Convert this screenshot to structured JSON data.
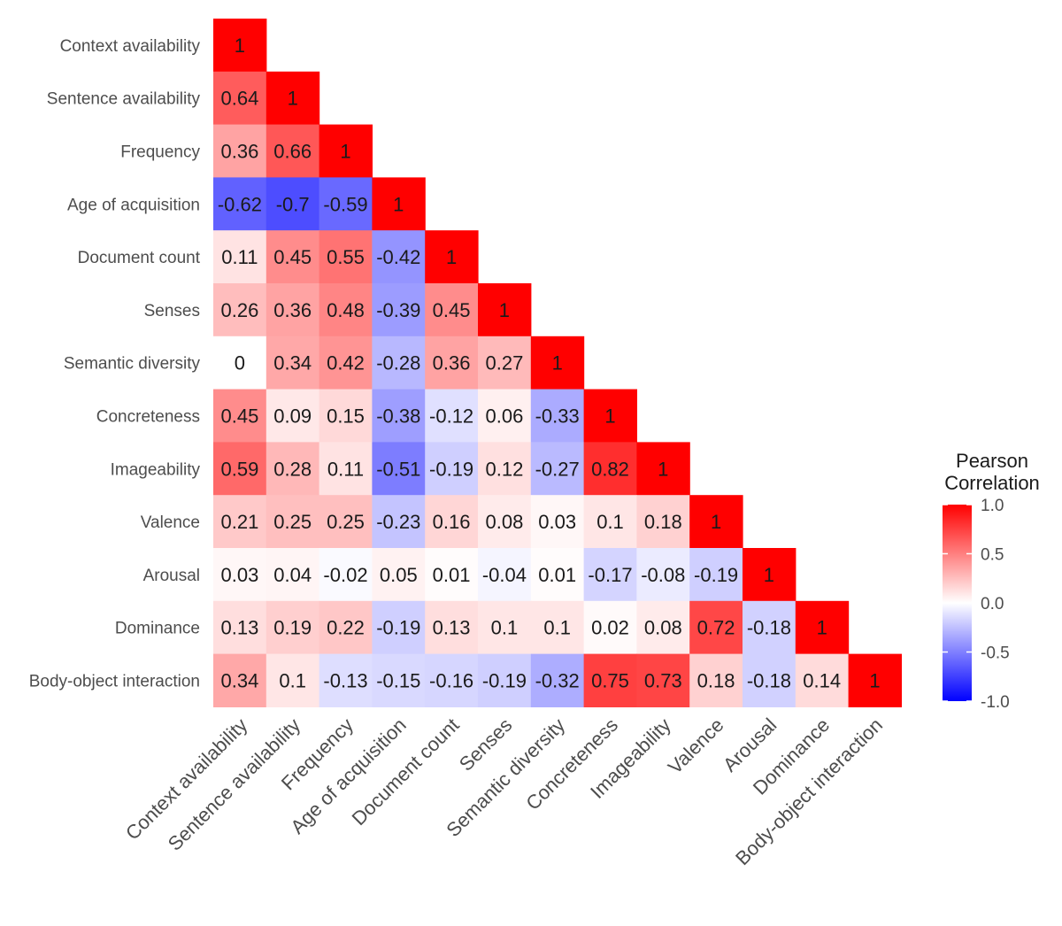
{
  "chart_data": {
    "type": "heatmap",
    "variables": [
      "Context availability",
      "Sentence availability",
      "Frequency",
      "Age of acquisition",
      "Document count",
      "Senses",
      "Semantic diversity",
      "Concreteness",
      "Imageability",
      "Valence",
      "Arousal",
      "Dominance",
      "Body-object interaction"
    ],
    "x_tick_labels": [
      "Context availability",
      "Sentence availability",
      "Frequency",
      "Age of acquisition",
      "Document count",
      "Senses",
      "Semantic diversity",
      "Concreteness",
      "Imageability",
      "Valence",
      "Arousal",
      "Dominance",
      "Body-object interaction"
    ],
    "y_tick_labels": [
      "Context availability",
      "Sentence availability",
      "Frequency",
      "Age of acquisition",
      "Document count",
      "Senses",
      "Semantic diversity",
      "Concreteness",
      "Imageability",
      "Valence",
      "Arousal",
      "Dominance",
      "Body-object interaction"
    ],
    "matrix_lower_triangle": [
      [
        1
      ],
      [
        0.64,
        1
      ],
      [
        0.36,
        0.66,
        1
      ],
      [
        -0.62,
        -0.7,
        -0.59,
        1
      ],
      [
        0.11,
        0.45,
        0.55,
        -0.42,
        1
      ],
      [
        0.26,
        0.36,
        0.48,
        -0.39,
        0.45,
        1
      ],
      [
        0,
        0.34,
        0.42,
        -0.28,
        0.36,
        0.27,
        1
      ],
      [
        0.45,
        0.09,
        0.15,
        -0.38,
        -0.12,
        0.06,
        -0.33,
        1
      ],
      [
        0.59,
        0.28,
        0.11,
        -0.51,
        -0.19,
        0.12,
        -0.27,
        0.82,
        1
      ],
      [
        0.21,
        0.25,
        0.25,
        -0.23,
        0.16,
        0.08,
        0.03,
        0.1,
        0.18,
        1
      ],
      [
        0.03,
        0.04,
        -0.02,
        0.05,
        0.01,
        -0.04,
        0.01,
        -0.17,
        -0.08,
        -0.19,
        1
      ],
      [
        0.13,
        0.19,
        0.22,
        -0.19,
        0.13,
        0.1,
        0.1,
        0.02,
        0.08,
        0.72,
        -0.18,
        1
      ],
      [
        0.34,
        0.1,
        -0.13,
        -0.15,
        -0.16,
        -0.19,
        -0.32,
        0.75,
        0.73,
        0.18,
        -0.18,
        0.14,
        1
      ]
    ],
    "legend": {
      "title_line1": "Pearson",
      "title_line2": "Correlation",
      "placement": "right",
      "range": [
        -1,
        1
      ],
      "ticks": [
        "1.0",
        "0.5",
        "0.0",
        "-0.5",
        "-1.0"
      ],
      "tick_values": [
        1,
        0.5,
        0,
        -0.5,
        -1
      ]
    },
    "colors": {
      "negative": "#0000ff",
      "neutral": "#ffffff",
      "positive": "#ff0000",
      "label_text": "#4d4d4d",
      "cell_text": "#1a1a1a"
    }
  }
}
